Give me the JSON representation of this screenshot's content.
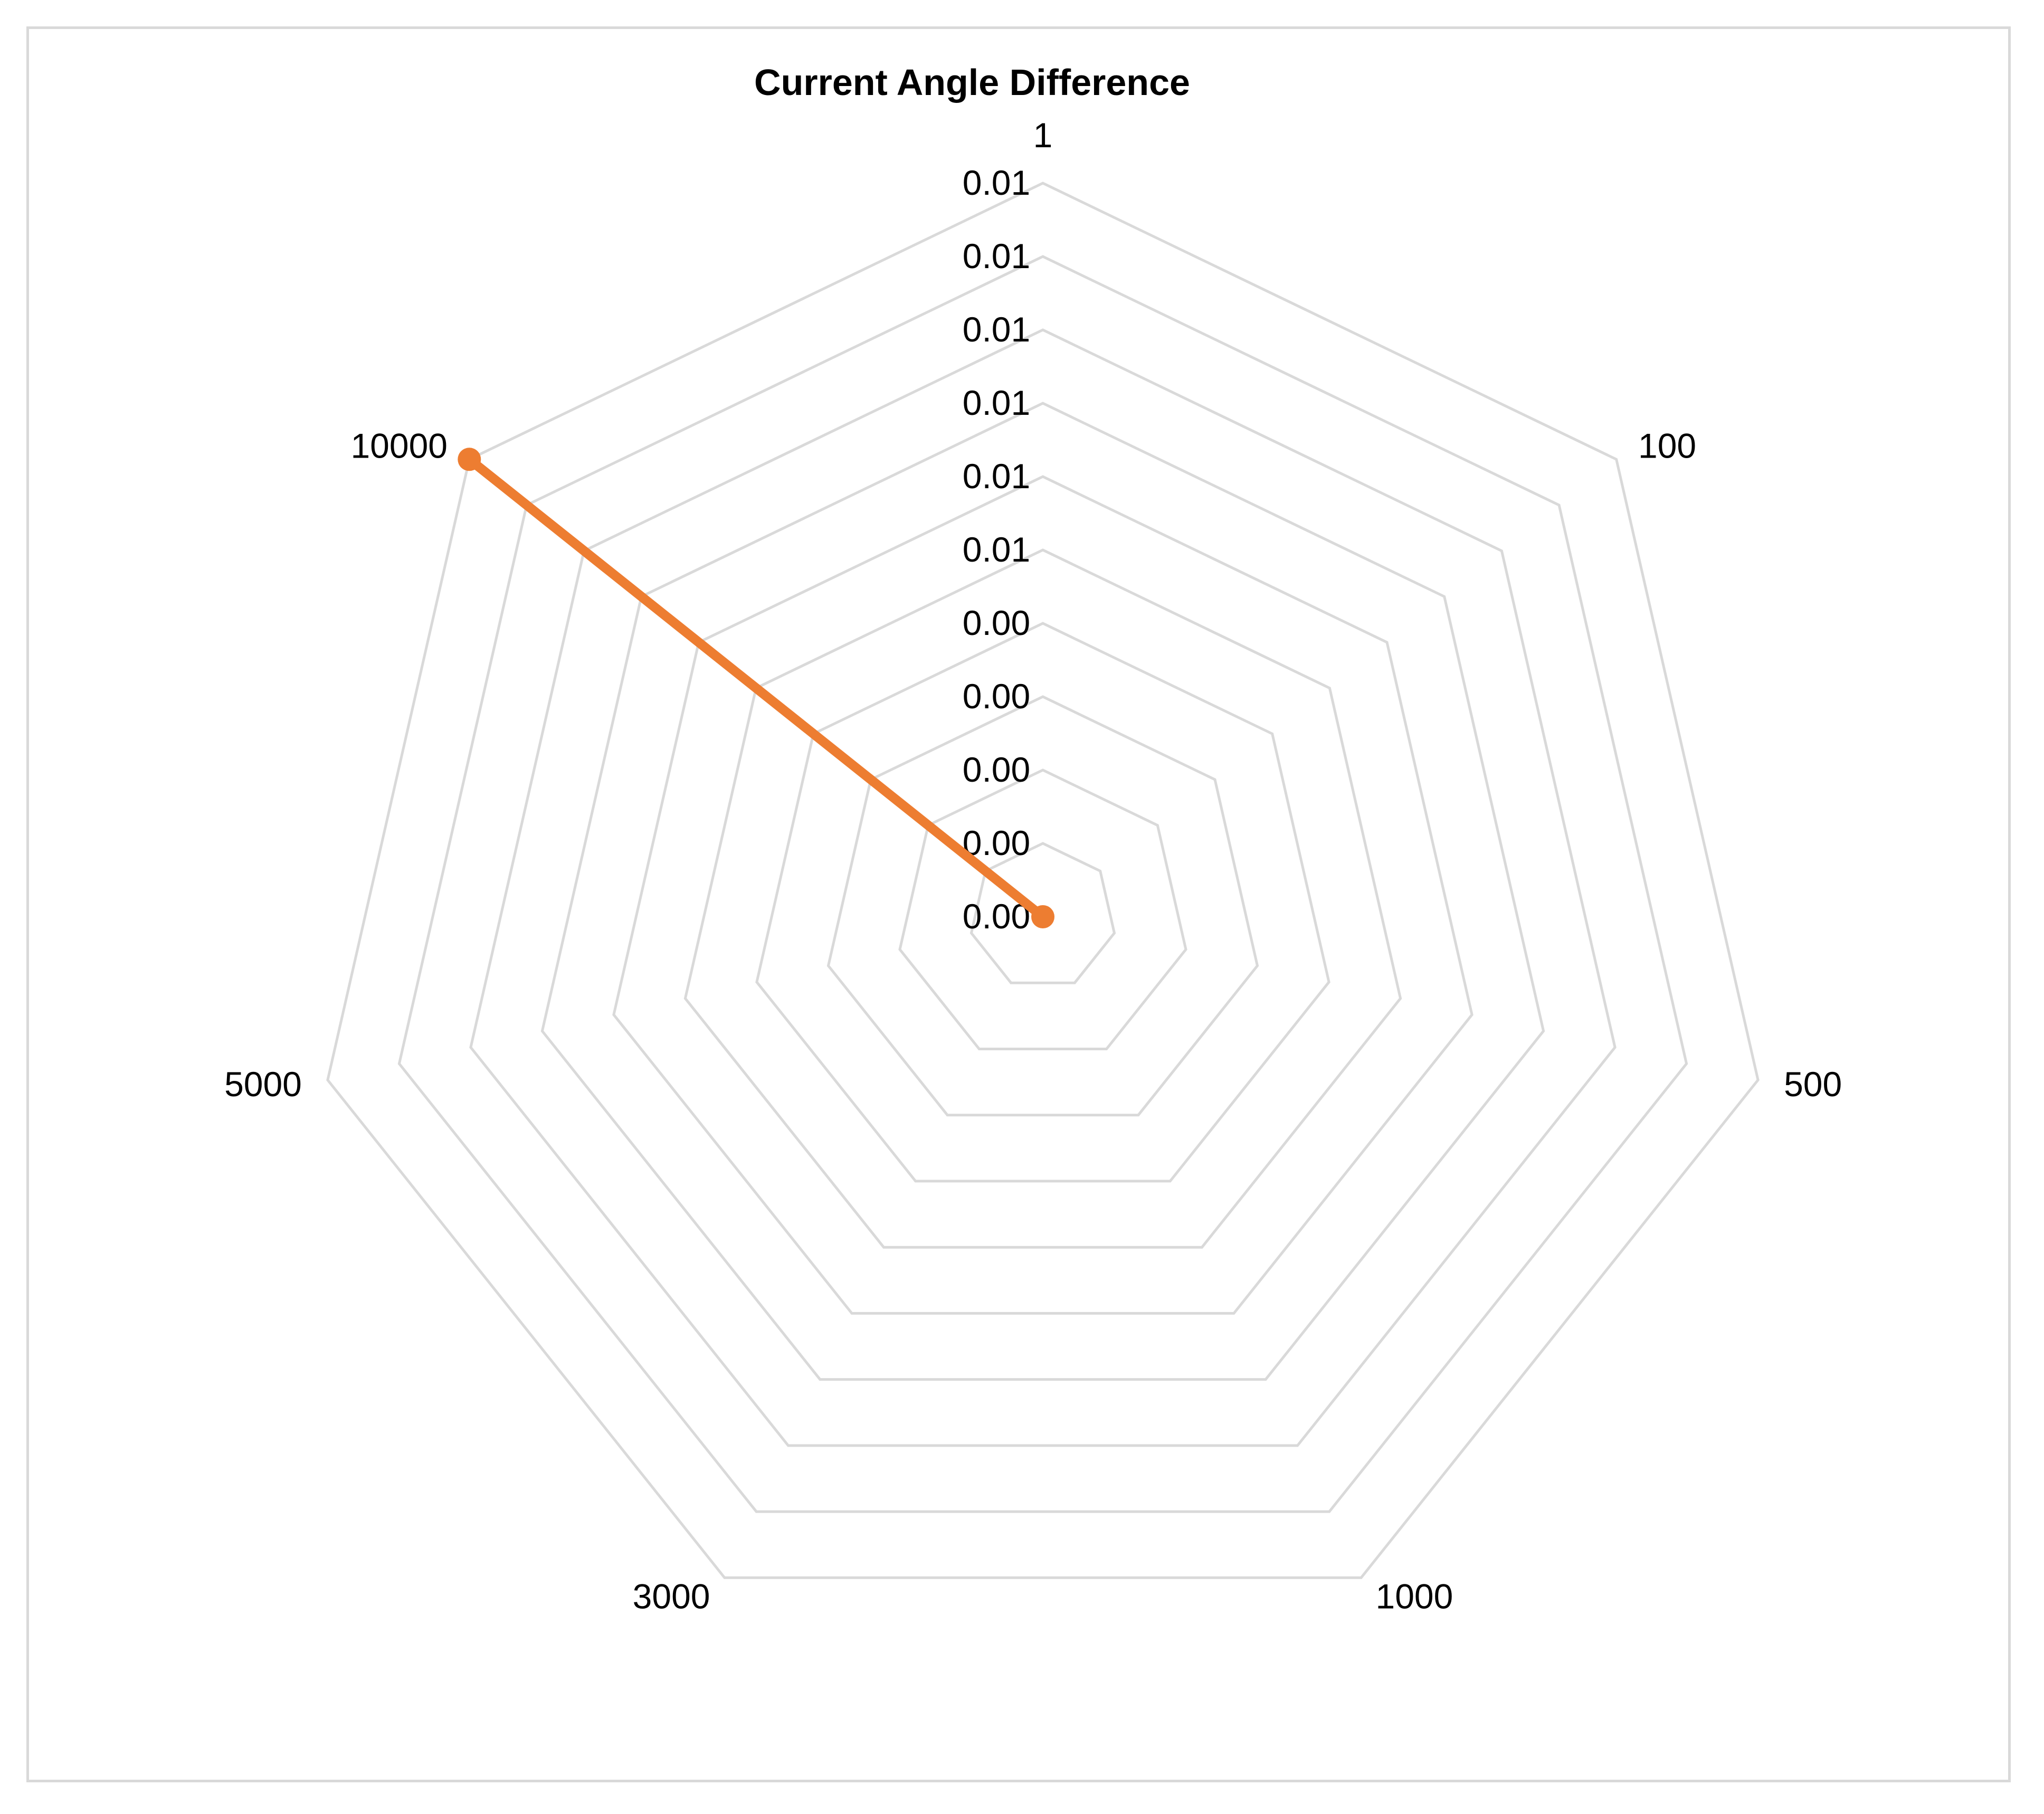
{
  "chart_data": {
    "type": "radar",
    "title": "Current Angle Difference",
    "categories": [
      "1",
      "100",
      "500",
      "1000",
      "3000",
      "5000",
      "10000"
    ],
    "radial_axis": {
      "ticks": [
        "0.00",
        "0.00",
        "0.00",
        "0.00",
        "0.00",
        "0.01",
        "0.01",
        "0.01",
        "0.01",
        "0.01",
        "0.01"
      ],
      "range": [
        0,
        0.01
      ],
      "gridlines": true
    },
    "series": [
      {
        "values": [
          null,
          null,
          null,
          null,
          null,
          0,
          0.01
        ],
        "color": "#ed7d31",
        "marker": "circle"
      }
    ],
    "legend": "none",
    "grid_color": "#d9d9d9"
  }
}
